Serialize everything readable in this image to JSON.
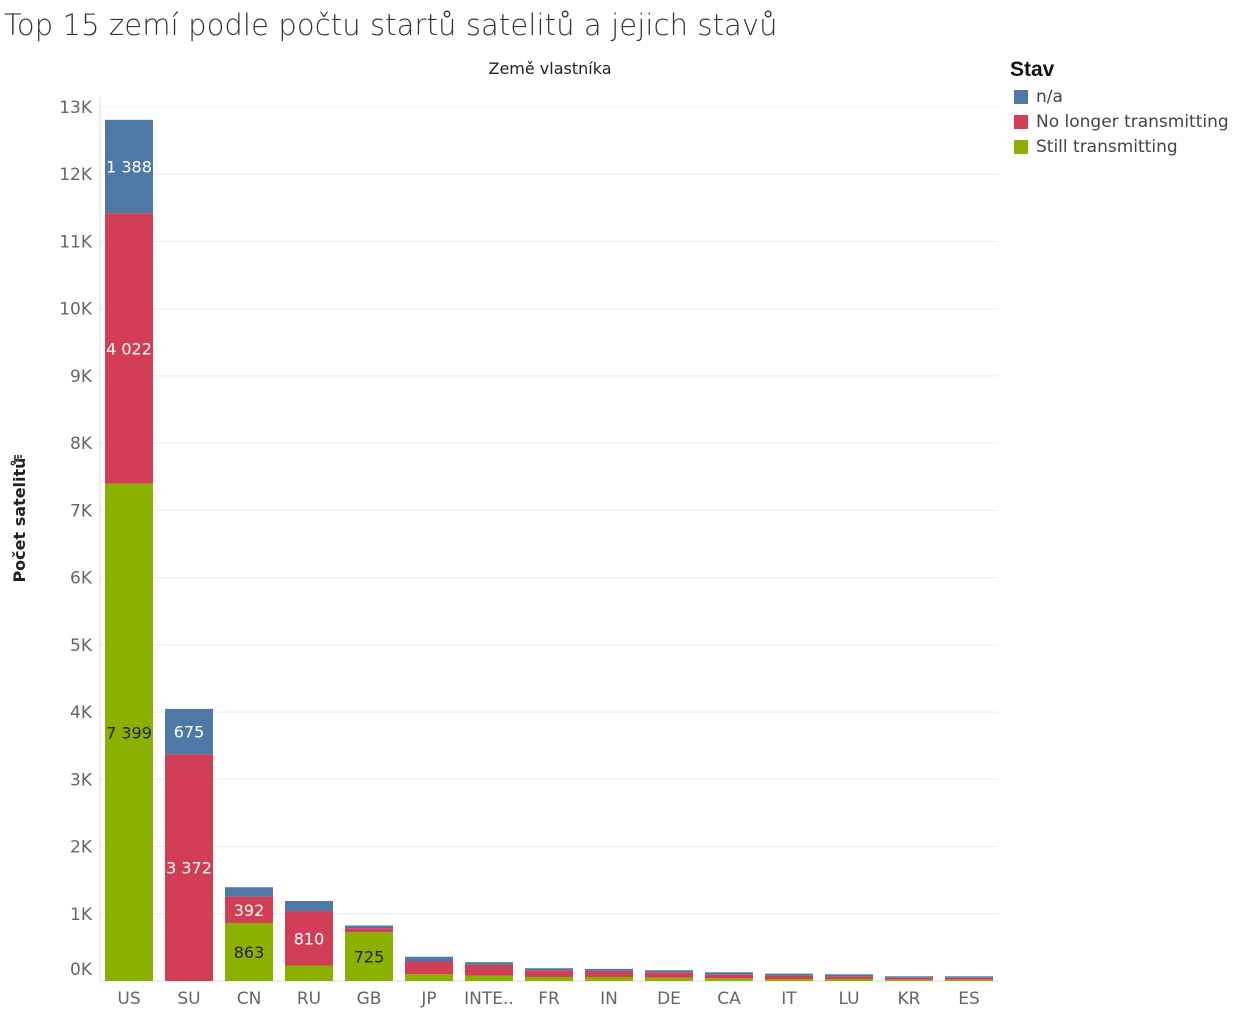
{
  "title": "Top 15 zemí podle počtu startů satelitů a jejich stavů",
  "colors": {
    "n/a": "#4e79a7",
    "No longer transmitting": "#d13e55",
    "Still transmitting": "#8bb000"
  },
  "legend": {
    "title": "Stav",
    "items": [
      {
        "label": "n/a",
        "color": "#4e79a7"
      },
      {
        "label": "No longer transmitting",
        "color": "#d13e55"
      },
      {
        "label": "Still transmitting",
        "color": "#8bb000"
      }
    ]
  },
  "chart_data": {
    "type": "bar",
    "stacked": true,
    "title": "Top 15 zemí podle počtu startů satelitů a jejich stavů",
    "xlabel": "Země vlastníka",
    "ylabel": "Počet satelitů",
    "ylim": [
      0,
      13000
    ],
    "yticks": [
      0,
      1000,
      2000,
      3000,
      4000,
      5000,
      6000,
      7000,
      8000,
      9000,
      10000,
      11000,
      12000,
      13000
    ],
    "ytick_labels": [
      "0K",
      "1K",
      "2K",
      "3K",
      "4K",
      "5K",
      "6K",
      "7K",
      "8K",
      "9K",
      "10K",
      "11K",
      "12K",
      "13K"
    ],
    "grid": true,
    "legend_position": "top-right",
    "categories": [
      "US",
      "SU",
      "CN",
      "RU",
      "GB",
      "JP",
      "INTE..",
      "FR",
      "IN",
      "DE",
      "CA",
      "IT",
      "LU",
      "KR",
      "ES"
    ],
    "series": [
      {
        "name": "Still transmitting",
        "values": [
          7399,
          0,
          863,
          230,
          725,
          100,
          80,
          60,
          60,
          50,
          40,
          30,
          30,
          20,
          20
        ],
        "labels": [
          "7 399",
          "",
          "863",
          "",
          "725",
          "",
          "",
          "",
          "",
          "",
          "",
          "",
          "",
          "",
          ""
        ]
      },
      {
        "name": "No longer transmitting",
        "values": [
          4022,
          3372,
          392,
          810,
          60,
          190,
          160,
          100,
          90,
          80,
          60,
          50,
          40,
          30,
          30
        ],
        "labels": [
          "4 022",
          "3 372",
          "392",
          "810",
          "",
          "",
          "",
          "",
          "",
          "",
          "",
          "",
          "",
          "",
          ""
        ]
      },
      {
        "name": "n/a",
        "values": [
          1388,
          675,
          140,
          150,
          40,
          70,
          40,
          30,
          30,
          30,
          30,
          30,
          30,
          20,
          20
        ],
        "labels": [
          "1 388",
          "675",
          "",
          "",
          "",
          "",
          "",
          "",
          "",
          "",
          "",
          "",
          "",
          "",
          ""
        ]
      }
    ]
  }
}
